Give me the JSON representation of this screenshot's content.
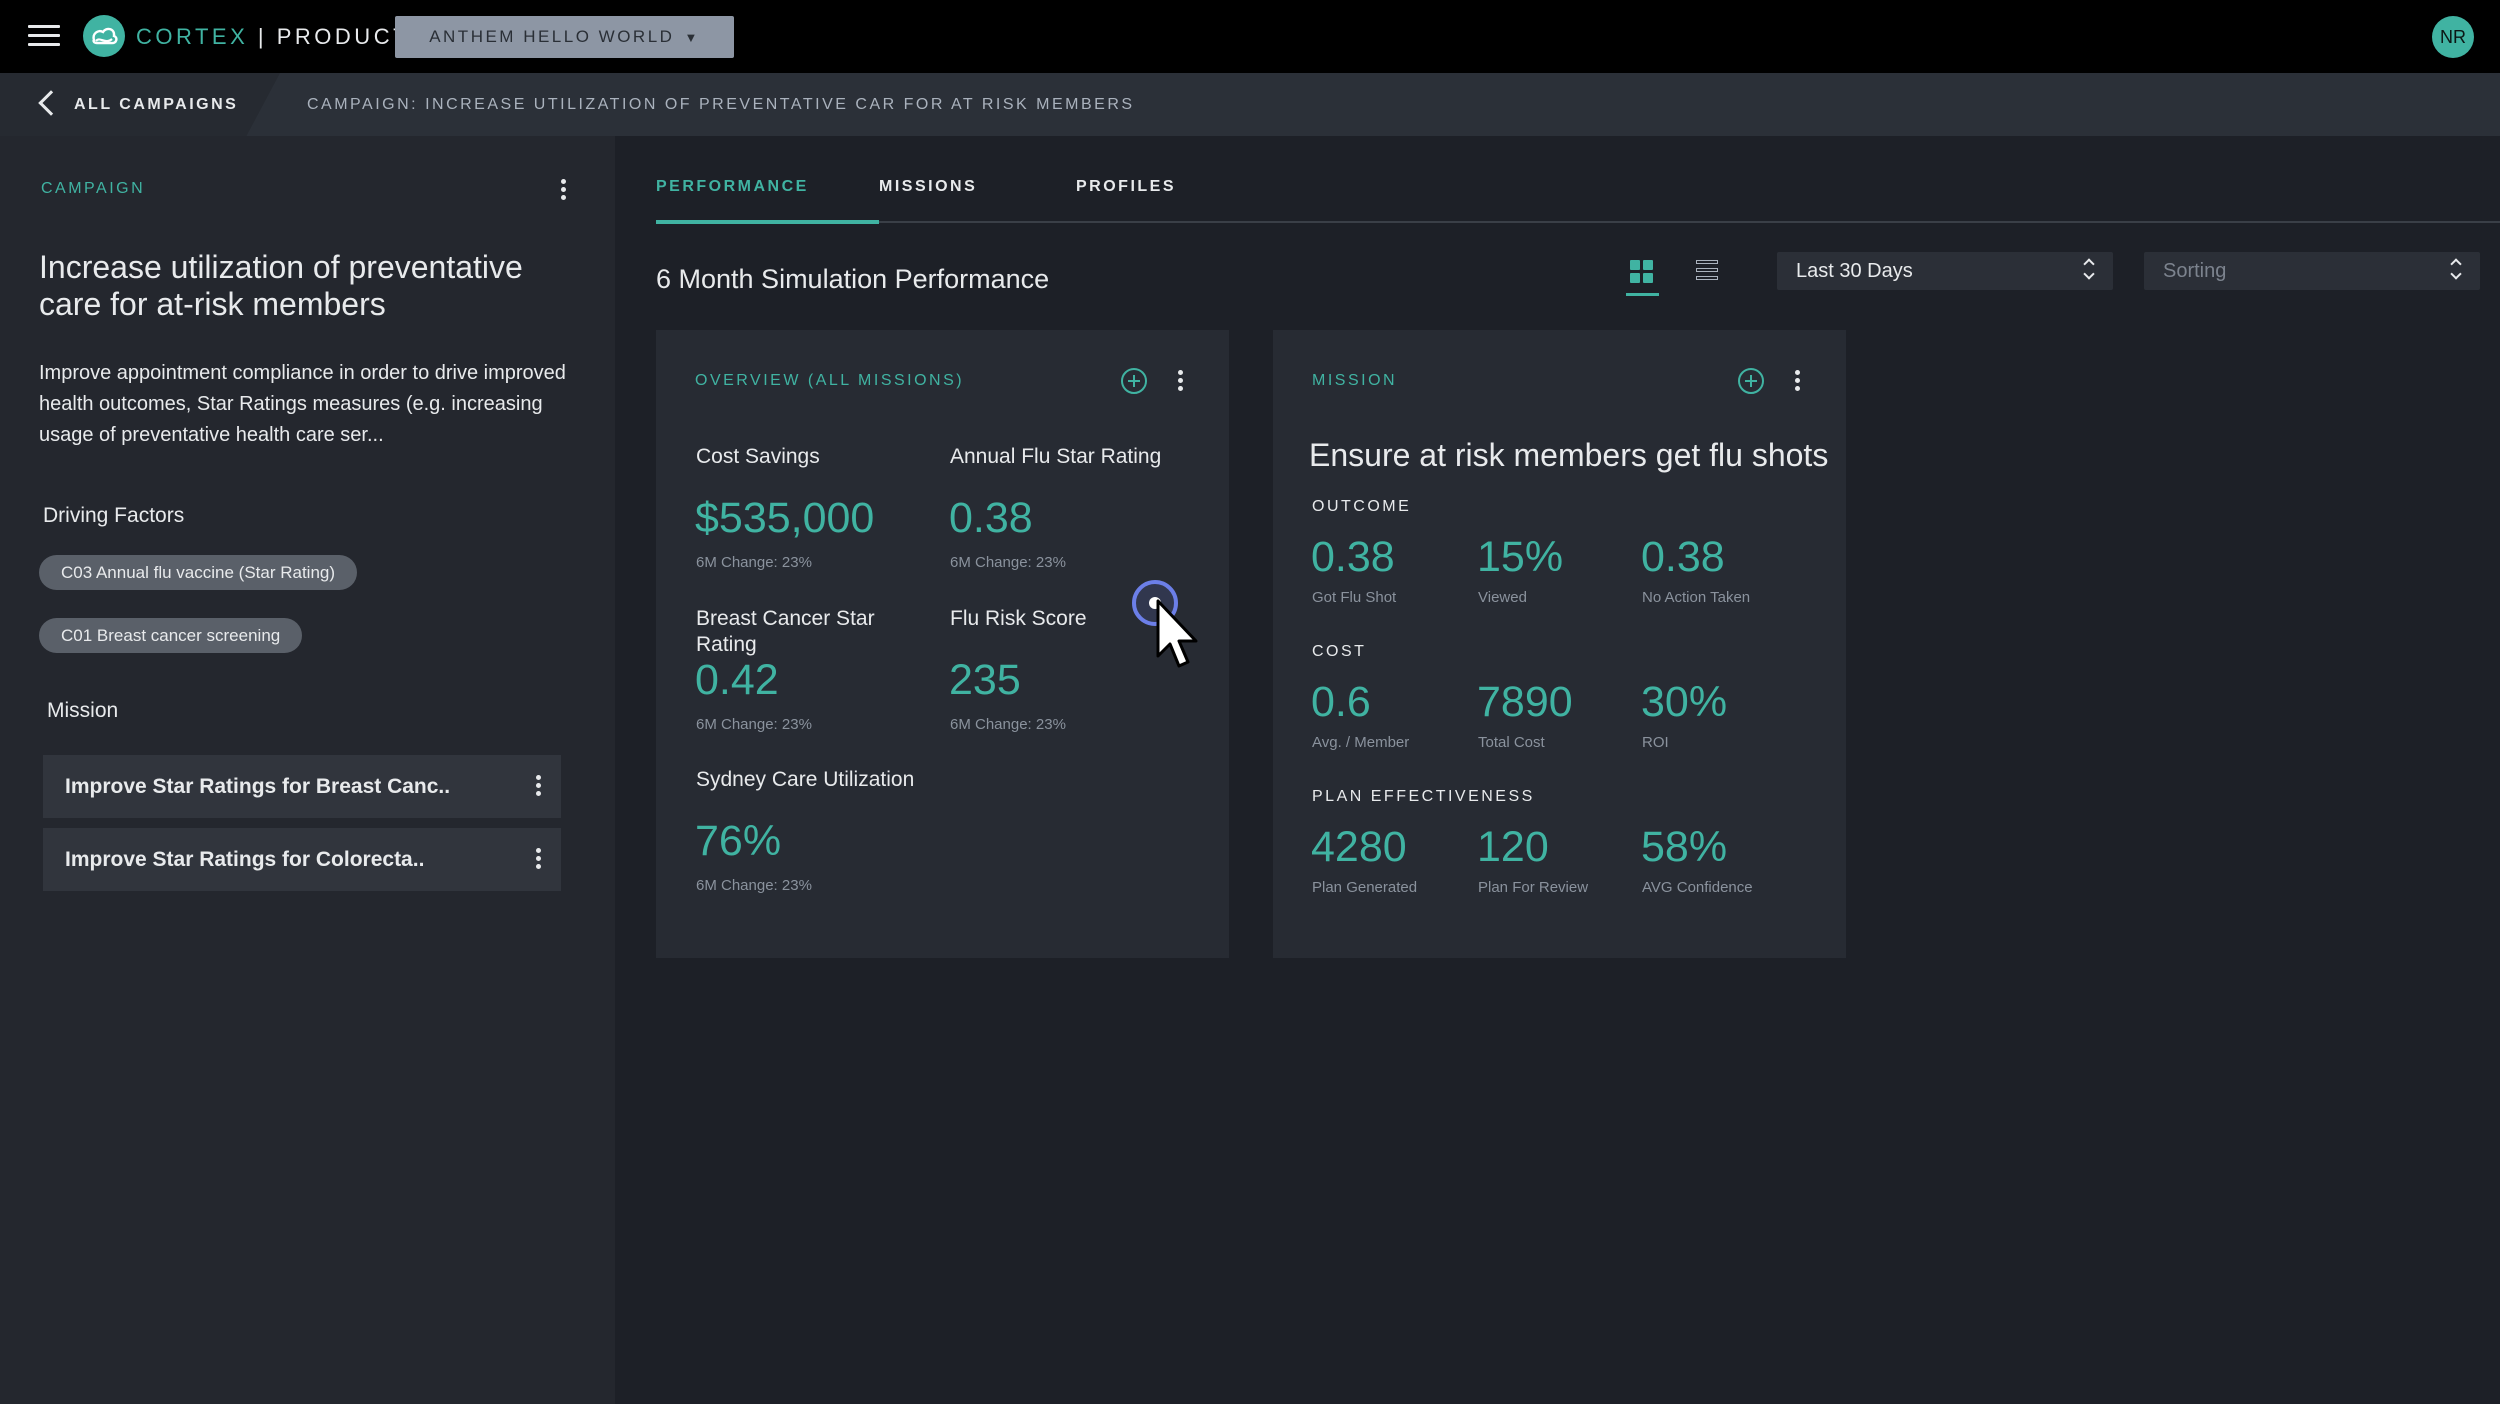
{
  "topbar": {
    "brand": "CORTEX",
    "separator": "|",
    "product": "PRODUCT",
    "project": "ANTHEM HELLO WORLD",
    "user_initials": "NR"
  },
  "breadcrumb": {
    "back_label": "ALL CAMPAIGNS",
    "campaign_prefix": "CAMPAIGN:",
    "campaign_name": "INCREASE UTILIZATION OF PREVENTATIVE CAR FOR AT RISK MEMBERS"
  },
  "sidebar": {
    "section_label": "CAMPAIGN",
    "title": "Increase utilization of preventative care for at-risk members",
    "description": "Improve appointment compliance in order to drive improved health outcomes, Star Ratings measures (e.g. increasing usage of preventative health care ser...",
    "driving_factors_label": "Driving Factors",
    "driving_factors": [
      "C03 Annual flu vaccine (Star Rating)",
      "C01 Breast cancer screening"
    ],
    "mission_label": "Mission",
    "missions": [
      "Improve Star Ratings for Breast Canc..",
      "Improve Star Ratings for Colorecta.."
    ]
  },
  "tabs": [
    "PERFORMANCE",
    "MISSIONS",
    "PROFILES"
  ],
  "main": {
    "title": "6 Month Simulation Performance",
    "date_range": "Last 30 Days",
    "sorting_placeholder": "Sorting"
  },
  "overview_card": {
    "label": "OVERVIEW (ALL MISSIONS)",
    "metrics": [
      {
        "title": "Cost Savings",
        "value": "$535,000",
        "change": "6M Change: 23%"
      },
      {
        "title": "Annual Flu Star Rating",
        "value": "0.38",
        "change": "6M Change: 23%"
      },
      {
        "title": "Breast Cancer Star Rating",
        "value": "0.42",
        "change": "6M Change: 23%"
      },
      {
        "title": "Flu Risk Score",
        "value": "235",
        "change": "6M Change: 23%"
      },
      {
        "title": "Sydney Care Utilization",
        "value": "76%",
        "change": "6M Change: 23%"
      }
    ]
  },
  "mission_card": {
    "label": "MISSION",
    "headline": "Ensure at risk members get flu shots",
    "sections": [
      {
        "label": "OUTCOME",
        "stats": [
          {
            "value": "0.38",
            "label": "Got Flu Shot"
          },
          {
            "value": "15%",
            "label": "Viewed"
          },
          {
            "value": "0.38",
            "label": "No Action Taken"
          }
        ]
      },
      {
        "label": "COST",
        "stats": [
          {
            "value": "0.6",
            "label": "Avg. / Member"
          },
          {
            "value": "7890",
            "label": "Total Cost"
          },
          {
            "value": "30%",
            "label": "ROI"
          }
        ]
      },
      {
        "label": "PLAN EFFECTIVENESS",
        "stats": [
          {
            "value": "4280",
            "label": "Plan Generated"
          },
          {
            "value": "120",
            "label": "Plan For Review"
          },
          {
            "value": "58%",
            "label": "AVG Confidence"
          }
        ]
      }
    ]
  },
  "colors": {
    "accent": "#40b3a2",
    "background": "#1d2027",
    "sidebar": "#24272e",
    "card": "#272b33"
  }
}
